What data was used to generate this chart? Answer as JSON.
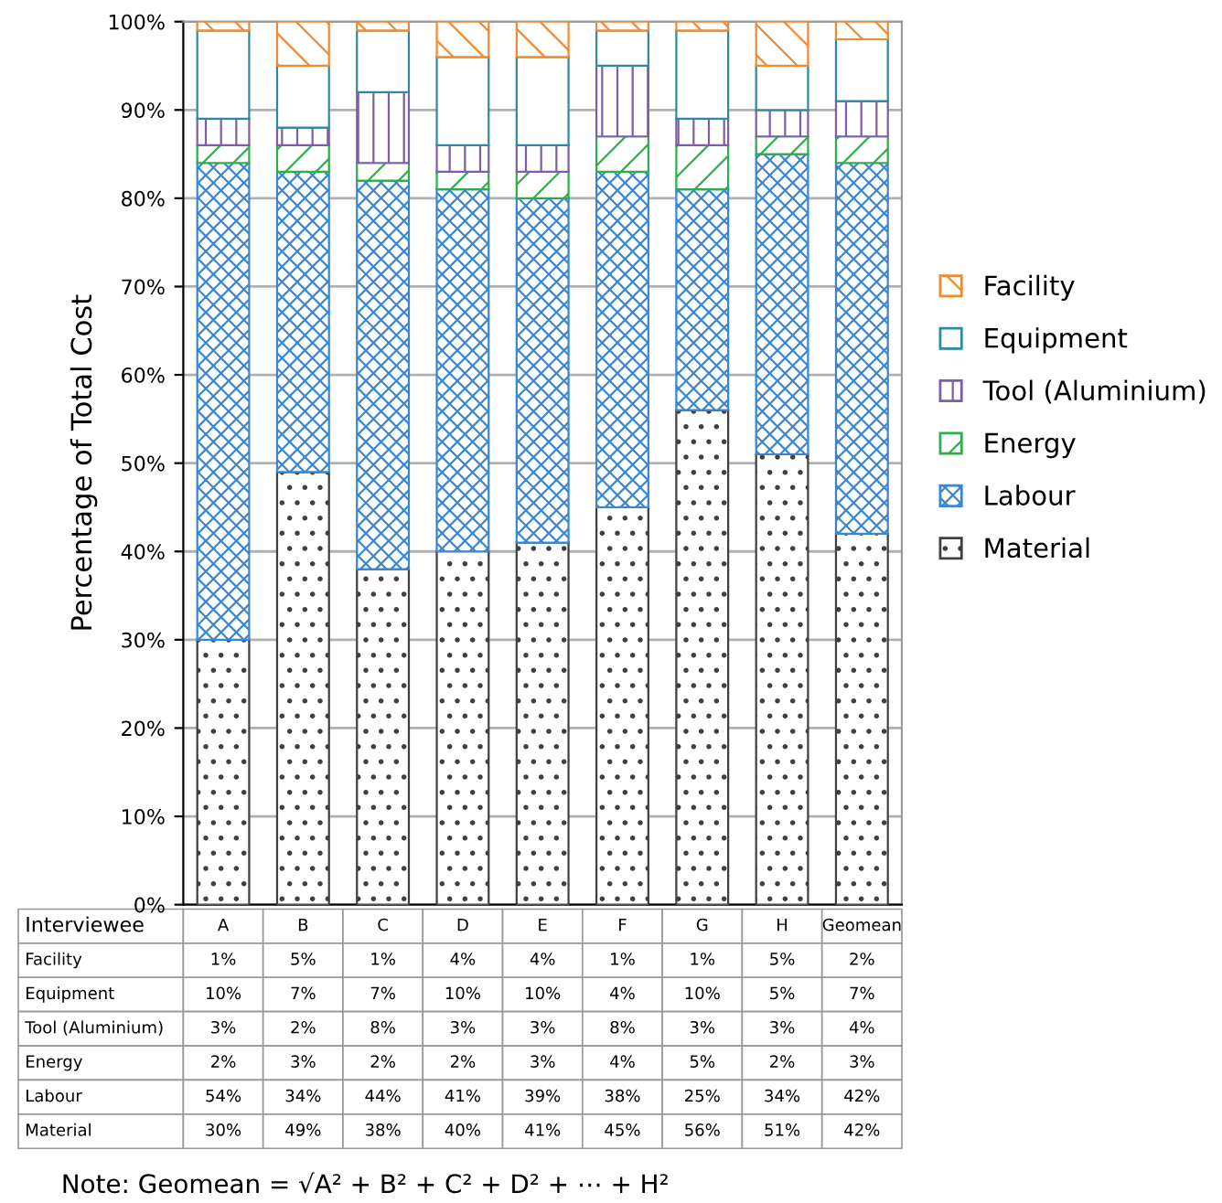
{
  "chart_data": {
    "type": "bar",
    "stacked": true,
    "ylabel": "Percentage of Total Cost",
    "xlabel": "Interviewee",
    "categories": [
      "A",
      "B",
      "C",
      "D",
      "E",
      "F",
      "G",
      "H",
      "Geomean"
    ],
    "series": [
      {
        "name": "Material",
        "color": "#404040",
        "values": [
          30,
          49,
          38,
          40,
          41,
          45,
          56,
          51,
          42
        ],
        "value_labels": [
          "30%",
          "49%",
          "38%",
          "40%",
          "41%",
          "45%",
          "56%",
          "51%",
          "42%"
        ]
      },
      {
        "name": "Labour",
        "color": "#3a86d0",
        "values": [
          54,
          34,
          44,
          41,
          39,
          38,
          25,
          34,
          42
        ],
        "value_labels": [
          "54%",
          "34%",
          "44%",
          "41%",
          "39%",
          "38%",
          "25%",
          "34%",
          "42%"
        ]
      },
      {
        "name": "Energy",
        "color": "#2eae4a",
        "values": [
          2,
          3,
          2,
          2,
          3,
          4,
          5,
          2,
          3
        ],
        "value_labels": [
          "2%",
          "3%",
          "2%",
          "2%",
          "3%",
          "4%",
          "5%",
          "2%",
          "3%"
        ]
      },
      {
        "name": "Tool (Aluminium)",
        "color": "#7e5ea8",
        "values": [
          3,
          2,
          8,
          3,
          3,
          8,
          3,
          3,
          4
        ],
        "value_labels": [
          "3%",
          "2%",
          "8%",
          "3%",
          "3%",
          "8%",
          "3%",
          "3%",
          "4%"
        ]
      },
      {
        "name": "Equipment",
        "color": "#2e8aa0",
        "values": [
          10,
          7,
          7,
          10,
          10,
          4,
          10,
          5,
          7
        ],
        "value_labels": [
          "10%",
          "7%",
          "7%",
          "10%",
          "10%",
          "4%",
          "10%",
          "5%",
          "7%"
        ]
      },
      {
        "name": "Facility",
        "color": "#f08a30",
        "values": [
          1,
          5,
          1,
          4,
          4,
          1,
          1,
          5,
          2
        ],
        "value_labels": [
          "1%",
          "5%",
          "1%",
          "4%",
          "4%",
          "1%",
          "1%",
          "5%",
          "2%"
        ]
      }
    ],
    "ylim": [
      0,
      100
    ],
    "yticks": [
      {
        "value": 0,
        "label": "0%"
      },
      {
        "value": 10,
        "label": "10%"
      },
      {
        "value": 20,
        "label": "20%"
      },
      {
        "value": 30,
        "label": "30%"
      },
      {
        "value": 40,
        "label": "40%"
      },
      {
        "value": 50,
        "label": "50%"
      },
      {
        "value": 60,
        "label": "60%"
      },
      {
        "value": 70,
        "label": "70%"
      },
      {
        "value": 80,
        "label": "80%"
      },
      {
        "value": 90,
        "label": "90%"
      },
      {
        "value": 100,
        "label": "100%"
      }
    ],
    "grid": "y",
    "legend": "right",
    "annotations": [
      "Note: Geomean = √A² + B² + C² + D² + ⋯ + H²"
    ]
  }
}
